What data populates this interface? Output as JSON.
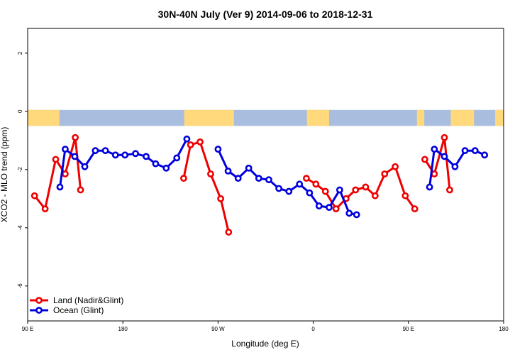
{
  "chart_data": {
    "type": "line",
    "title": "30N-40N July (Ver 9)   2014-09-06 to 2018-12-31",
    "xlabel": "Longitude (deg E)",
    "ylabel": "XCO2 - MLO trend (ppm)",
    "xlim": [
      90,
      540
    ],
    "ylim": [
      -7.2,
      2.85
    ],
    "xticks": [
      {
        "value": 90,
        "label": "90 E"
      },
      {
        "value": 180,
        "label": "180"
      },
      {
        "value": 270,
        "label": "90 W"
      },
      {
        "value": 360,
        "label": "0"
      },
      {
        "value": 450,
        "label": "90 E"
      },
      {
        "value": 540,
        "label": "180"
      }
    ],
    "yticks": [
      {
        "value": 2,
        "label": "2"
      },
      {
        "value": 0,
        "label": "0"
      },
      {
        "value": -2,
        "label": "-2"
      },
      {
        "value": -4,
        "label": "-4"
      },
      {
        "value": -6,
        "label": "-6"
      }
    ],
    "map_band": {
      "ymin": -0.5,
      "ymax": 0.05,
      "ocean_color": "#a9bedf",
      "land_color": "#ffd97c",
      "land_segments": [
        [
          90,
          120
        ],
        [
          238,
          285
        ],
        [
          354,
          375
        ],
        [
          458,
          465
        ],
        [
          490,
          512
        ],
        [
          532,
          545
        ]
      ]
    },
    "series": [
      {
        "name": "Land (Nadir&Glint)",
        "color": "#ee0000",
        "segments": [
          [
            [
              96.5,
              -2.9
            ],
            [
              106.5,
              -3.35
            ],
            [
              116.5,
              -1.65
            ],
            [
              125.5,
              -2.15
            ],
            [
              135,
              -0.9
            ],
            [
              140,
              -2.7
            ]
          ],
          [
            [
              237.5,
              -2.3
            ],
            [
              244,
              -1.15
            ],
            [
              253,
              -1.05
            ],
            [
              263,
              -2.15
            ],
            [
              272.5,
              -3.0
            ],
            [
              280,
              -4.15
            ]
          ],
          [
            [
              353.5,
              -2.3
            ],
            [
              362.5,
              -2.5
            ],
            [
              371.5,
              -2.75
            ],
            [
              381.5,
              -3.35
            ],
            [
              391,
              -3.0
            ],
            [
              400,
              -2.7
            ],
            [
              409.5,
              -2.6
            ],
            [
              418.5,
              -2.9
            ],
            [
              427.5,
              -2.15
            ],
            [
              437.5,
              -1.9
            ],
            [
              447,
              -2.9
            ],
            [
              456,
              -3.35
            ]
          ],
          [
            [
              465.5,
              -1.65
            ],
            [
              474.5,
              -2.15
            ],
            [
              484,
              -0.9
            ],
            [
              489,
              -2.7
            ]
          ]
        ]
      },
      {
        "name": "Ocean (Glint)",
        "color": "#0000dd",
        "segments": [
          [
            [
              120.5,
              -2.6
            ],
            [
              125.5,
              -1.3
            ],
            [
              134.5,
              -1.55
            ],
            [
              144,
              -1.9
            ],
            [
              154,
              -1.35
            ],
            [
              163.5,
              -1.35
            ],
            [
              173,
              -1.5
            ],
            [
              182,
              -1.5
            ],
            [
              192,
              -1.45
            ],
            [
              202,
              -1.55
            ],
            [
              211,
              -1.8
            ],
            [
              221,
              -1.95
            ],
            [
              231,
              -1.6
            ],
            [
              240.5,
              -0.95
            ]
          ],
          [
            [
              270,
              -1.3
            ],
            [
              279.5,
              -2.05
            ],
            [
              289,
              -2.3
            ],
            [
              299,
              -1.95
            ],
            [
              308.5,
              -2.3
            ],
            [
              318,
              -2.35
            ],
            [
              327.5,
              -2.65
            ],
            [
              337,
              -2.75
            ],
            [
              347,
              -2.5
            ],
            [
              356.5,
              -2.8
            ],
            [
              365.5,
              -3.25
            ],
            [
              375,
              -3.3
            ],
            [
              385,
              -2.7
            ],
            [
              394,
              -3.5
            ],
            [
              401,
              -3.55
            ]
          ],
          [
            [
              470,
              -2.6
            ],
            [
              474.5,
              -1.3
            ],
            [
              484,
              -1.55
            ],
            [
              494,
              -1.9
            ],
            [
              503.5,
              -1.35
            ],
            [
              513,
              -1.35
            ],
            [
              522,
              -1.5
            ]
          ]
        ]
      }
    ],
    "legend_position": "bottom-left"
  }
}
